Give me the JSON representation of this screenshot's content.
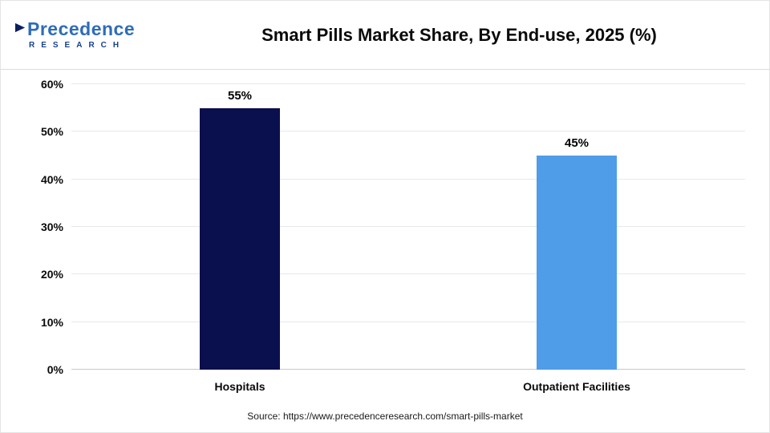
{
  "header": {
    "logo": {
      "name": "Precedence",
      "subtitle": "RESEARCH"
    }
  },
  "chart_data": {
    "type": "bar",
    "title": "Smart Pills Market Share, By End-use, 2025 (%)",
    "categories": [
      "Hospitals",
      "Outpatient Facilities"
    ],
    "values": [
      55,
      45
    ],
    "value_labels": [
      "55%",
      "45%"
    ],
    "bar_colors": [
      "#0a0f4d",
      "#4f9ce8"
    ],
    "xlabel": "",
    "ylabel": "",
    "ylim": [
      0,
      60
    ],
    "ytick_step": 10,
    "ytick_labels": [
      "0%",
      "10%",
      "20%",
      "30%",
      "40%",
      "50%",
      "60%"
    ],
    "grid": true,
    "legend": "none"
  },
  "footer": {
    "source": "Source: https://www.precedenceresearch.com/smart-pills-market"
  }
}
